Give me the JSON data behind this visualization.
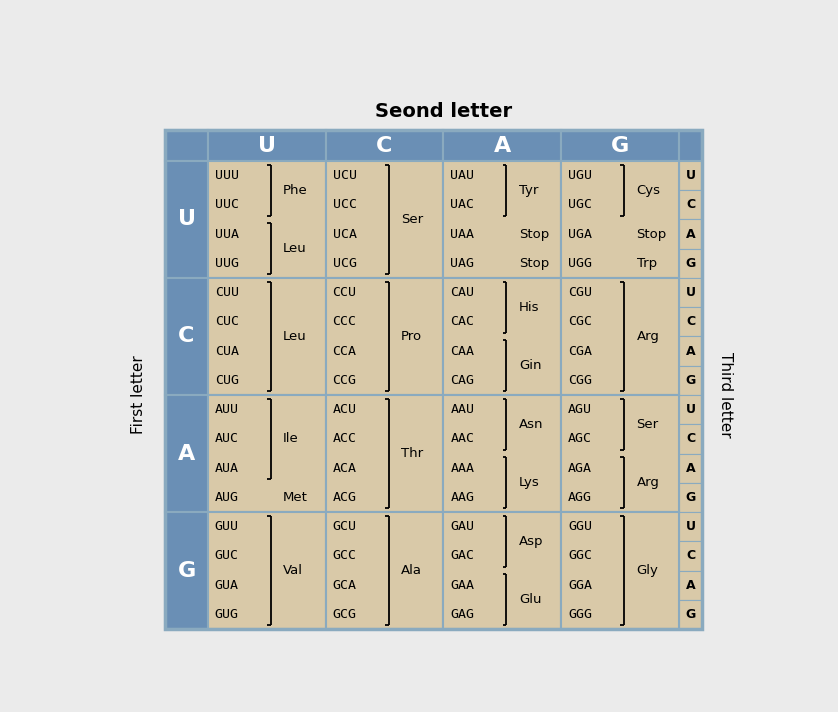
{
  "title": "Seond letter",
  "first_letter_label": "First letter",
  "third_letter_label": "Third letter",
  "second_letters": [
    "U",
    "C",
    "A",
    "G"
  ],
  "first_letters": [
    "U",
    "C",
    "A",
    "G"
  ],
  "third_letters": [
    "U",
    "C",
    "A",
    "G"
  ],
  "bg_color": "#D9C9A8",
  "header_color": "#6A8FB5",
  "border_color": "#8AAABF",
  "fig_bg": "#EBEBEB",
  "rows": [
    {
      "fl": "U",
      "cells": [
        {
          "codons": [
            "UUU",
            "UUC",
            "UUA",
            "UUG"
          ],
          "groups": [
            {
              "aa": "Phe",
              "span": [
                0,
                1
              ],
              "bracket": true
            },
            {
              "aa": "Leu",
              "span": [
                2,
                3
              ],
              "bracket": true
            }
          ]
        },
        {
          "codons": [
            "UCU",
            "UCC",
            "UCA",
            "UCG"
          ],
          "groups": [
            {
              "aa": "Ser",
              "span": [
                0,
                3
              ],
              "bracket": true
            }
          ]
        },
        {
          "codons": [
            "UAU",
            "UAC",
            "UAA",
            "UAG"
          ],
          "groups": [
            {
              "aa": "Tyr",
              "span": [
                0,
                1
              ],
              "bracket": true
            },
            {
              "aa": "Stop",
              "span": [
                2,
                2
              ],
              "bracket": false
            },
            {
              "aa": "Stop",
              "span": [
                3,
                3
              ],
              "bracket": false
            }
          ]
        },
        {
          "codons": [
            "UGU",
            "UGC",
            "UGA",
            "UGG"
          ],
          "groups": [
            {
              "aa": "Cys",
              "span": [
                0,
                1
              ],
              "bracket": true
            },
            {
              "aa": "Stop",
              "span": [
                2,
                2
              ],
              "bracket": false
            },
            {
              "aa": "Trp",
              "span": [
                3,
                3
              ],
              "bracket": false
            }
          ]
        }
      ]
    },
    {
      "fl": "C",
      "cells": [
        {
          "codons": [
            "CUU",
            "CUC",
            "CUA",
            "CUG"
          ],
          "groups": [
            {
              "aa": "Leu",
              "span": [
                0,
                3
              ],
              "bracket": true
            }
          ]
        },
        {
          "codons": [
            "CCU",
            "CCC",
            "CCA",
            "CCG"
          ],
          "groups": [
            {
              "aa": "Pro",
              "span": [
                0,
                3
              ],
              "bracket": true
            }
          ]
        },
        {
          "codons": [
            "CAU",
            "CAC",
            "CAA",
            "CAG"
          ],
          "groups": [
            {
              "aa": "His",
              "span": [
                0,
                1
              ],
              "bracket": true
            },
            {
              "aa": "Gin",
              "span": [
                2,
                3
              ],
              "bracket": true
            }
          ]
        },
        {
          "codons": [
            "CGU",
            "CGC",
            "CGA",
            "CGG"
          ],
          "groups": [
            {
              "aa": "Arg",
              "span": [
                0,
                3
              ],
              "bracket": true
            }
          ]
        }
      ]
    },
    {
      "fl": "A",
      "cells": [
        {
          "codons": [
            "AUU",
            "AUC",
            "AUA",
            "AUG"
          ],
          "groups": [
            {
              "aa": "Ile",
              "span": [
                0,
                2
              ],
              "bracket": true
            },
            {
              "aa": "Met",
              "span": [
                3,
                3
              ],
              "bracket": false
            }
          ]
        },
        {
          "codons": [
            "ACU",
            "ACC",
            "ACA",
            "ACG"
          ],
          "groups": [
            {
              "aa": "Thr",
              "span": [
                0,
                3
              ],
              "bracket": true
            }
          ]
        },
        {
          "codons": [
            "AAU",
            "AAC",
            "AAA",
            "AAG"
          ],
          "groups": [
            {
              "aa": "Asn",
              "span": [
                0,
                1
              ],
              "bracket": true
            },
            {
              "aa": "Lys",
              "span": [
                2,
                3
              ],
              "bracket": true
            }
          ]
        },
        {
          "codons": [
            "AGU",
            "AGC",
            "AGA",
            "AGG"
          ],
          "groups": [
            {
              "aa": "Ser",
              "span": [
                0,
                1
              ],
              "bracket": true
            },
            {
              "aa": "Arg",
              "span": [
                2,
                3
              ],
              "bracket": true
            }
          ]
        }
      ]
    },
    {
      "fl": "G",
      "cells": [
        {
          "codons": [
            "GUU",
            "GUC",
            "GUA",
            "GUG"
          ],
          "groups": [
            {
              "aa": "Val",
              "span": [
                0,
                3
              ],
              "bracket": true
            }
          ]
        },
        {
          "codons": [
            "GCU",
            "GCC",
            "GCA",
            "GCG"
          ],
          "groups": [
            {
              "aa": "Ala",
              "span": [
                0,
                3
              ],
              "bracket": true
            }
          ]
        },
        {
          "codons": [
            "GAU",
            "GAC",
            "GAA",
            "GAG"
          ],
          "groups": [
            {
              "aa": "Asp",
              "span": [
                0,
                1
              ],
              "bracket": true
            },
            {
              "aa": "Glu",
              "span": [
                2,
                3
              ],
              "bracket": true
            }
          ]
        },
        {
          "codons": [
            "GGU",
            "GGC",
            "GGA",
            "GGG"
          ],
          "groups": [
            {
              "aa": "Gly",
              "span": [
                0,
                3
              ],
              "bracket": true
            }
          ]
        }
      ]
    }
  ]
}
